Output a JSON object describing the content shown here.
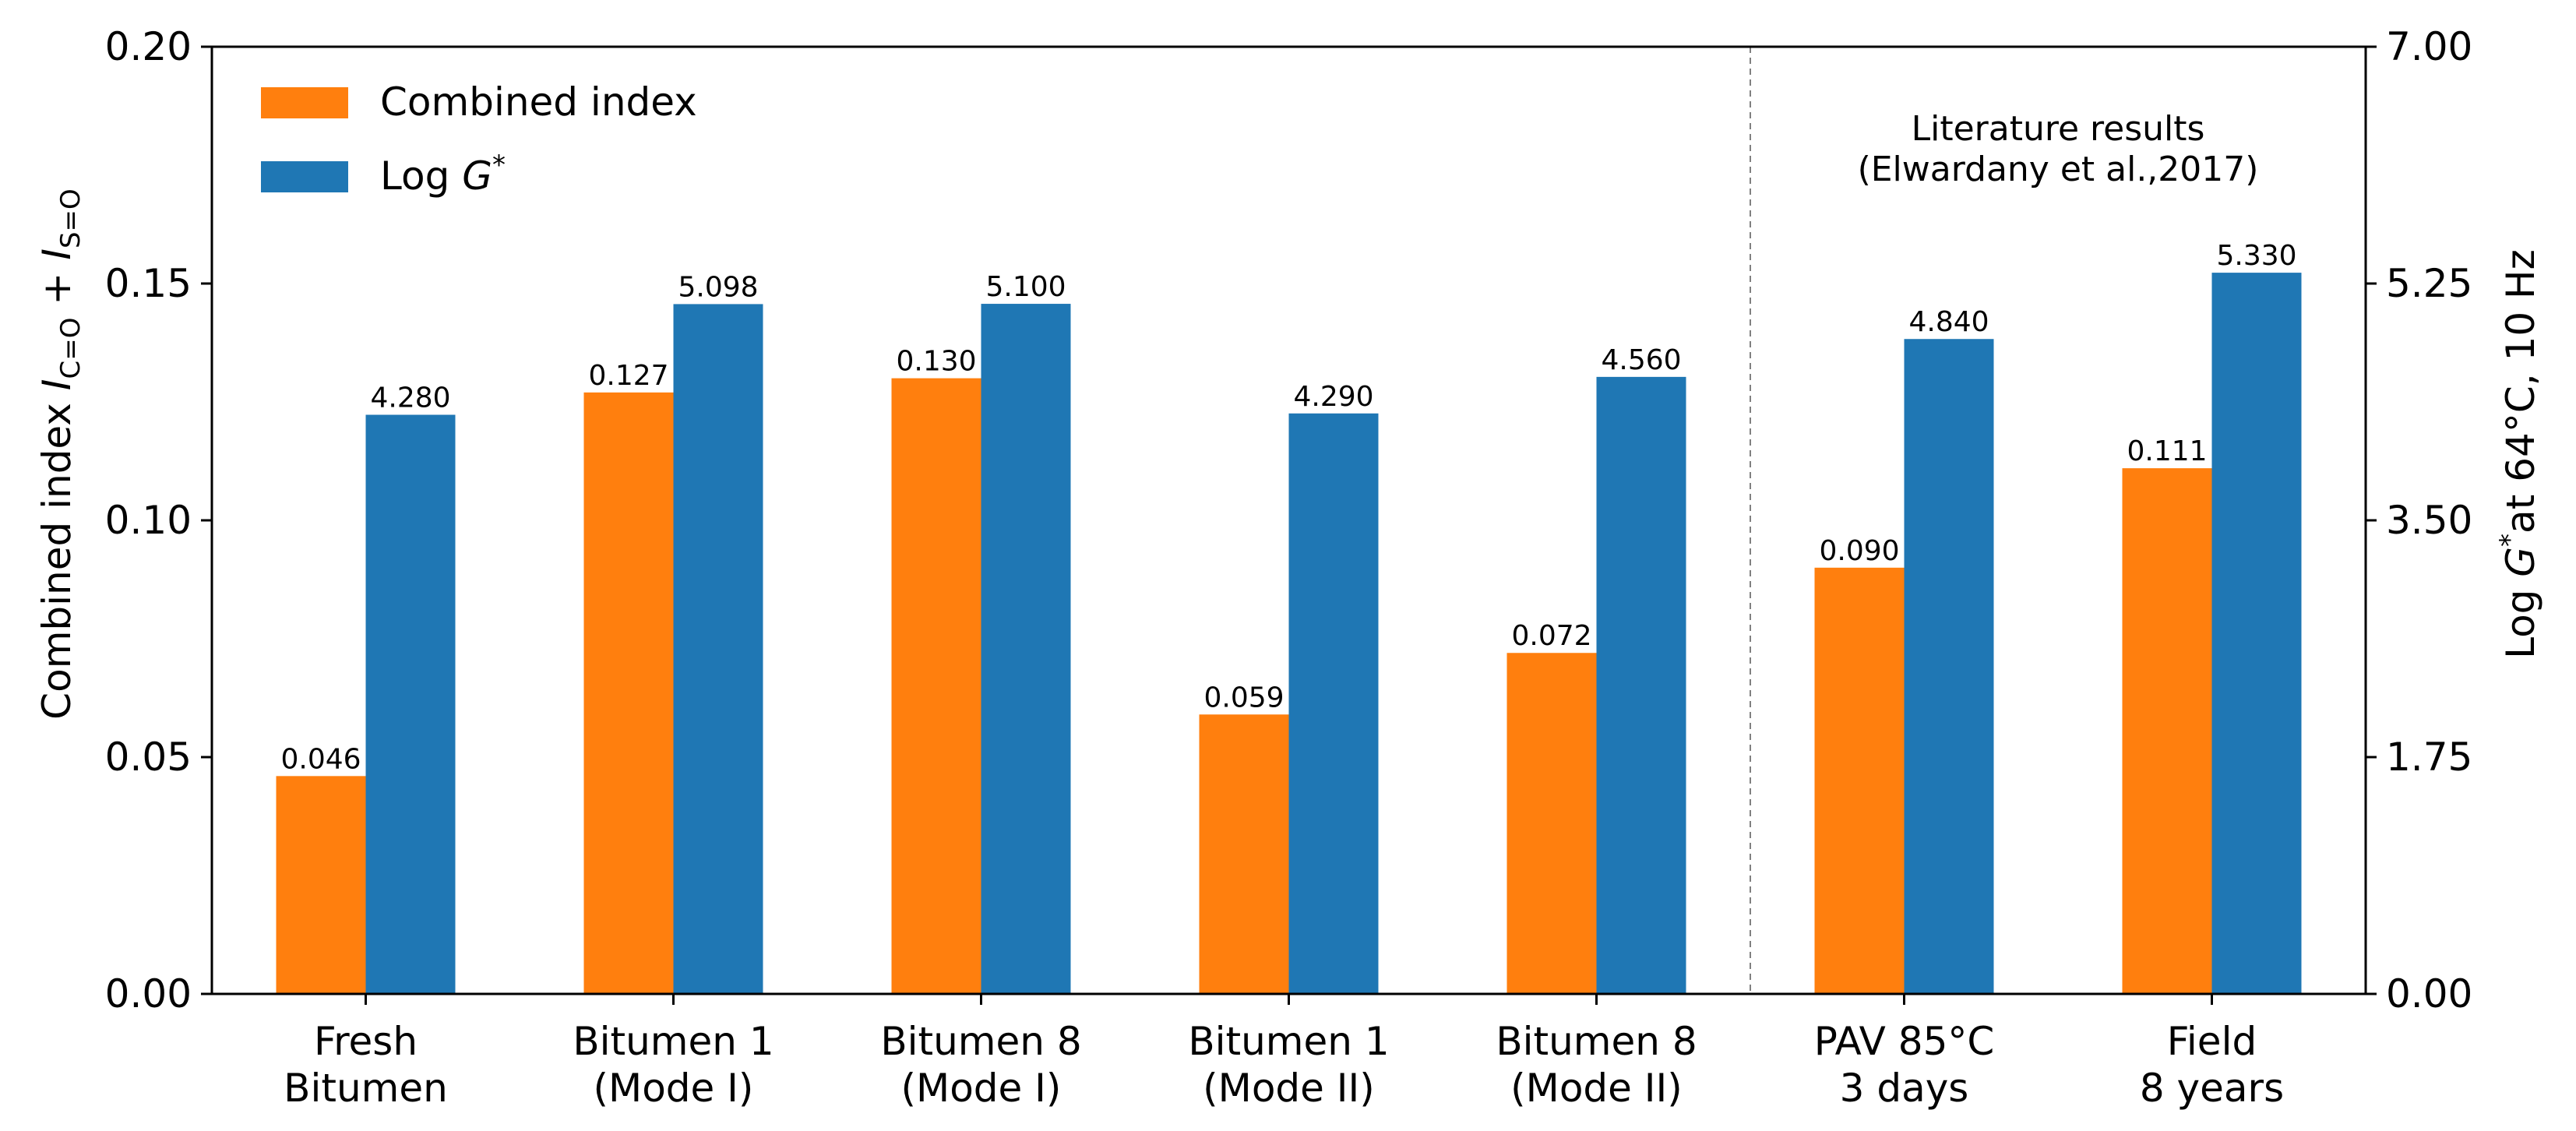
{
  "chart_data": {
    "type": "bar",
    "categories": [
      [
        "Fresh",
        "Bitumen"
      ],
      [
        "Bitumen 1",
        "(Mode I)"
      ],
      [
        "Bitumen 8",
        "(Mode I)"
      ],
      [
        "Bitumen 1",
        "(Mode II)"
      ],
      [
        "Bitumen 8",
        "(Mode II)"
      ],
      [
        "PAV 85°C",
        "3 days"
      ],
      [
        "Field",
        "8 years"
      ]
    ],
    "series": [
      {
        "name": "Combined index",
        "axis": "left",
        "color": "#ff7f0e",
        "values": [
          0.046,
          0.127,
          0.13,
          0.059,
          0.072,
          0.09,
          0.111
        ],
        "labels": [
          "0.046",
          "0.127",
          "0.130",
          "0.059",
          "0.072",
          "0.090",
          "0.111"
        ]
      },
      {
        "name": "Log G*",
        "name_prefix": "Log ",
        "name_symbol": "G",
        "name_sup": "*",
        "axis": "right",
        "color": "#1f77b4",
        "values": [
          4.28,
          5.098,
          5.1,
          4.29,
          4.56,
          4.84,
          5.33
        ],
        "labels": [
          "4.280",
          "5.098",
          "5.100",
          "4.290",
          "4.560",
          "4.840",
          "5.330"
        ]
      }
    ],
    "ylabel_left": {
      "text": "Combined index I_{C=O} + I_{S=O}",
      "prefix": "Combined index ",
      "i1": "I",
      "sub1": "C=O",
      "plus": " + ",
      "i2": "I",
      "sub2": "S=O"
    },
    "ylabel_right": {
      "text": "Log G*at 64°C, 10 Hz",
      "prefix": "Log ",
      "symbol": "G",
      "sup": "*",
      "suffix": "at 64°C, 10 Hz"
    },
    "ylim_left": [
      0,
      0.2
    ],
    "yticks_left": [
      "0.00",
      "0.05",
      "0.10",
      "0.15",
      "0.20"
    ],
    "ylim_right": [
      0,
      7
    ],
    "yticks_right": [
      "0.00",
      "1.75",
      "3.50",
      "5.25",
      "7.00"
    ],
    "annotation": [
      "Literature results",
      "(Elwardany et al.,2017)"
    ],
    "separator_after_category": 5,
    "legend_position": "upper-left",
    "grid": false
  }
}
